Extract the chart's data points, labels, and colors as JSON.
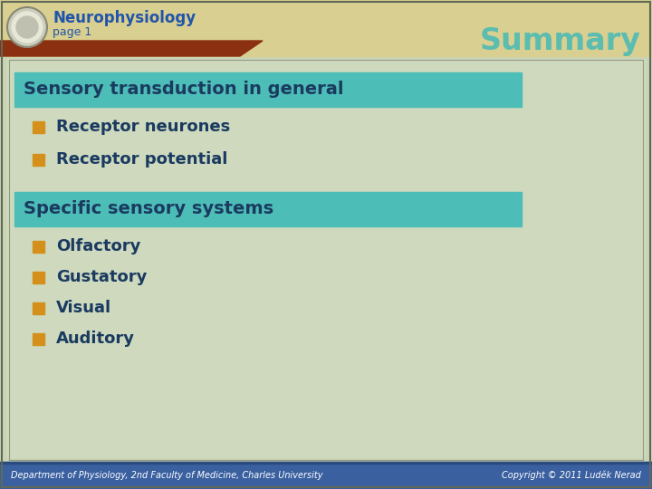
{
  "title": "Summary",
  "header_title": "Neurophysiology",
  "header_subtitle": "page 1",
  "header_title_color": "#2255AA",
  "header_subtitle_color": "#2255AA",
  "summary_color": "#5BBCB0",
  "header_bg": "#D8CF90",
  "header_bar_color": "#8B3010",
  "section1_text": "Sensory transduction in general",
  "section2_text": "Specific sensory systems",
  "section_bg": "#4DBDB8",
  "section_text_color": "#1A3A60",
  "bullet_color": "#D4901A",
  "bullet_text_color": "#1A3A60",
  "bullets1": [
    "Receptor neurones",
    "Receptor potential"
  ],
  "bullets2": [
    "Olfactory",
    "Gustatory",
    "Visual",
    "Auditory"
  ],
  "footer_bg": "#3A60A0",
  "footer_left": "Department of Physiology, 2nd Faculty of Medicine, Charles University",
  "footer_right": "Copyright © 2011 Luděk Nerad",
  "footer_text_color": "#FFFFFF",
  "slide_bg": "#C8D4B4",
  "content_bg": "#D0DAC0",
  "border_color": "#909880",
  "outer_border_color": "#606858"
}
